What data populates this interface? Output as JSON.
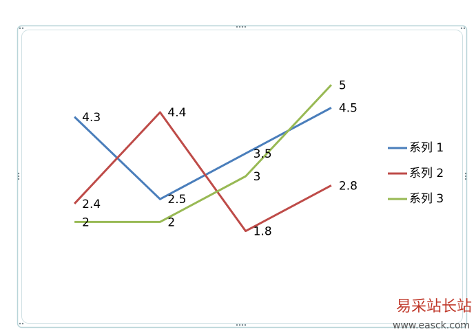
{
  "chart_data": {
    "type": "line",
    "categories": [
      null,
      null,
      null,
      null
    ],
    "series": [
      {
        "name": "系列 1",
        "color": "#4a7ebb",
        "values": [
          4.3,
          2.5,
          3.5,
          4.5
        ]
      },
      {
        "name": "系列 2",
        "color": "#be4b48",
        "values": [
          2.4,
          4.4,
          1.8,
          2.8
        ]
      },
      {
        "name": "系列 3",
        "color": "#98b954",
        "values": [
          2,
          2,
          3,
          5
        ]
      }
    ],
    "ylim": [
      0,
      6
    ],
    "legend": "right",
    "data_labels": true
  },
  "watermark": {
    "title": "易采站长站",
    "url": "www.easck.com"
  }
}
